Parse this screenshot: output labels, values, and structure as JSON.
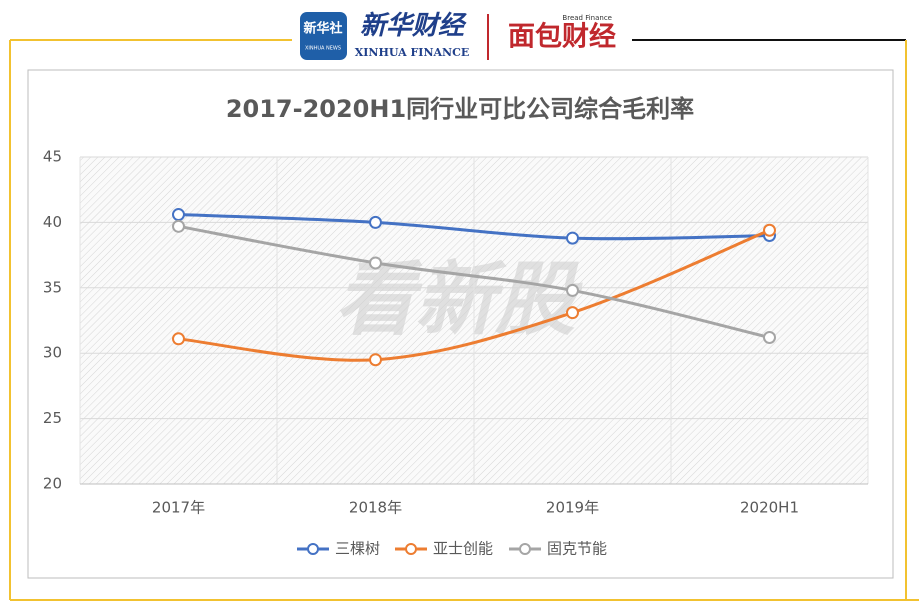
{
  "header": {
    "logo1": "新华社",
    "logo1_sub": "XINHUA NEWS",
    "logo2": "新华财经",
    "logo2_sub": "XINHUA FINANCE",
    "logo3_sub": "Bread Finance",
    "logo3": "面包财经"
  },
  "watermark": "看新股",
  "chart_data": {
    "type": "line",
    "title": "2017-2020H1同行业可比公司综合毛利率",
    "categories": [
      "2017年",
      "2018年",
      "2019年",
      "2020H1"
    ],
    "series": [
      {
        "name": "三棵树",
        "color": "#4472c4",
        "values": [
          40.6,
          40.0,
          38.8,
          39.0
        ]
      },
      {
        "name": "亚士创能",
        "color": "#ed7d31",
        "values": [
          31.1,
          29.5,
          33.1,
          39.4
        ]
      },
      {
        "name": "固克节能",
        "color": "#a5a5a5",
        "values": [
          39.7,
          36.9,
          34.8,
          31.2
        ]
      }
    ],
    "ylim": [
      20,
      45
    ],
    "yticks": [
      20,
      25,
      30,
      35,
      40,
      45
    ],
    "grid": true,
    "smooth": true,
    "legend": "bottom"
  }
}
